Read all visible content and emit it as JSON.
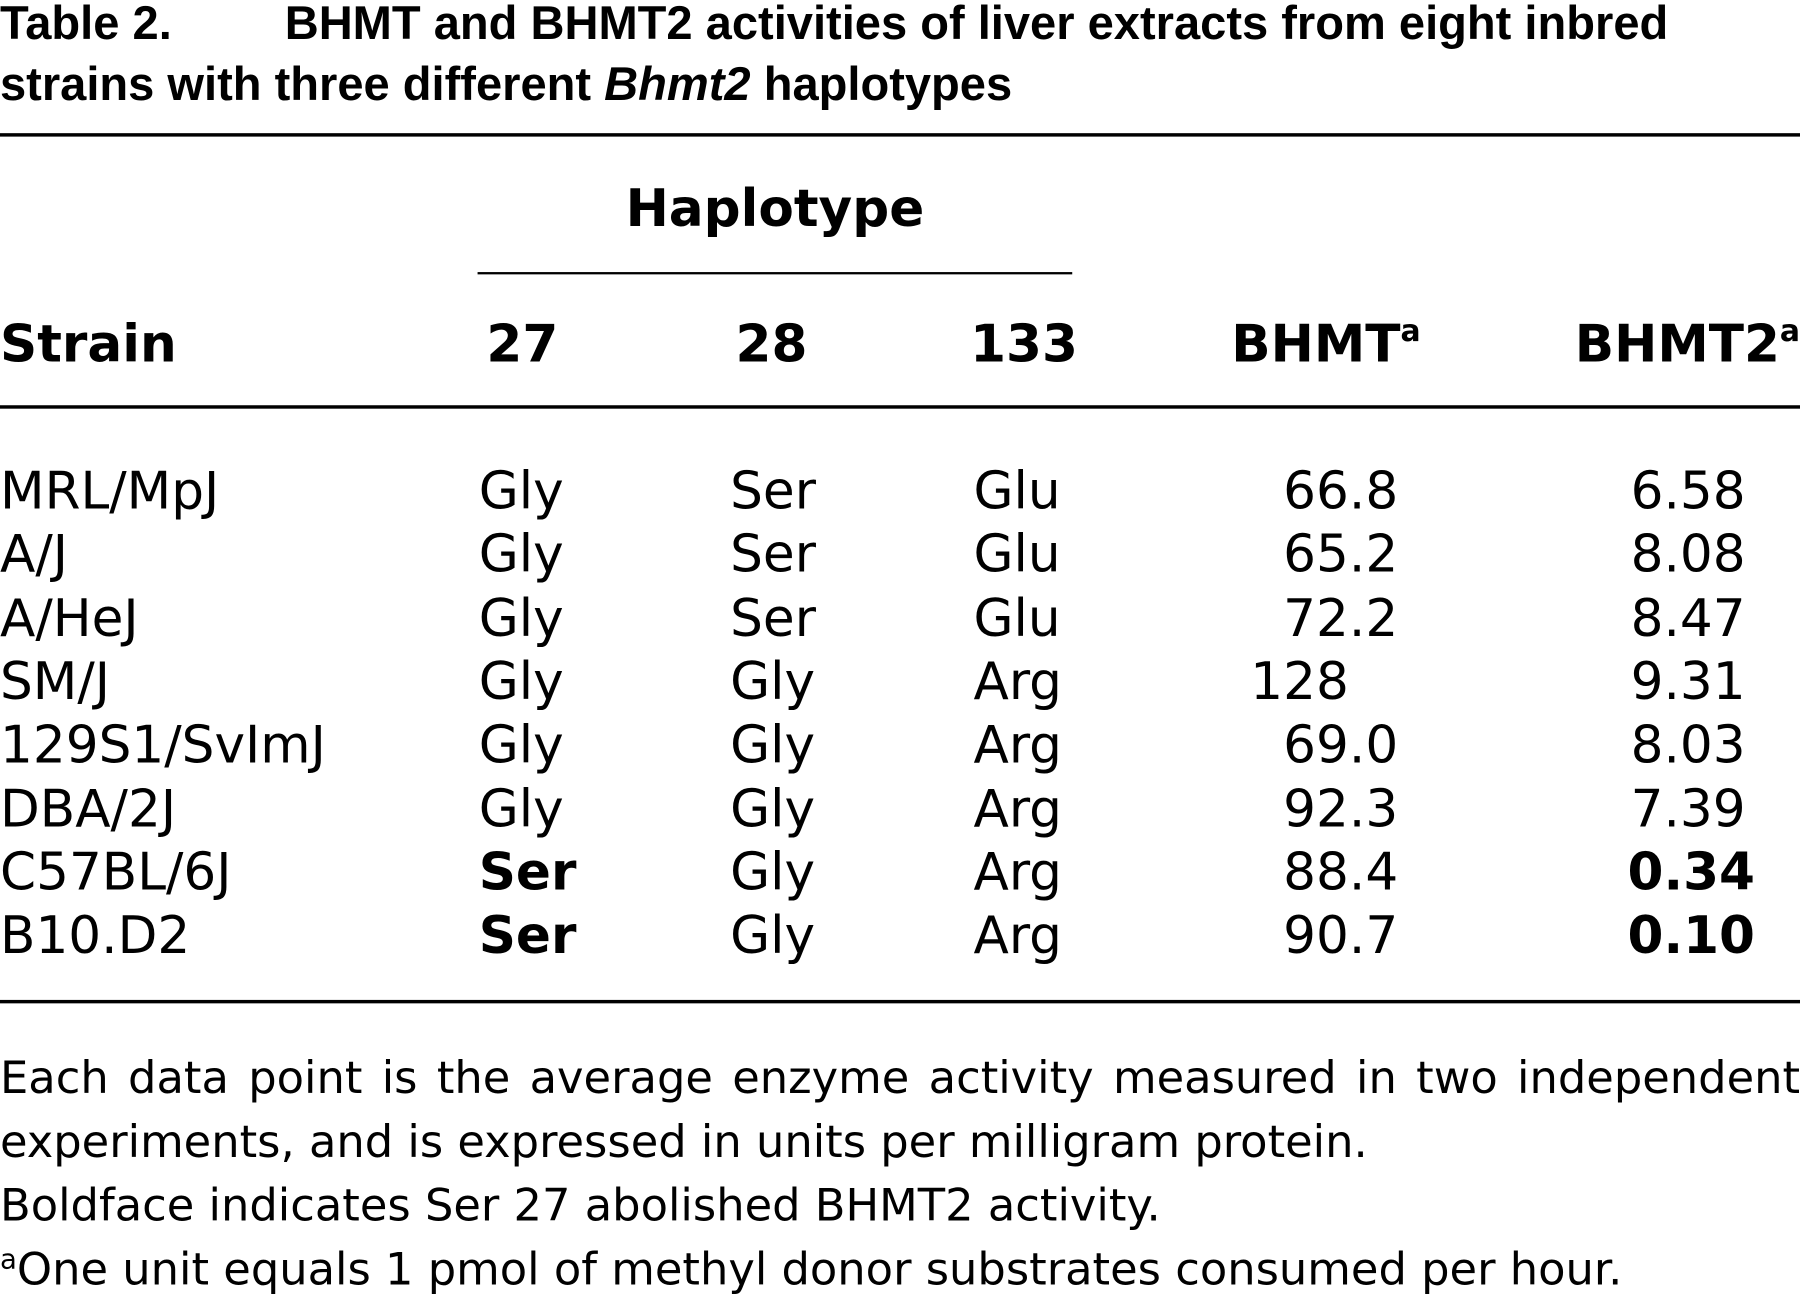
{
  "caption": {
    "label": "Table 2.",
    "title": "BHMT and BHMT2 activities of liver extracts from eight inbred strains with three different ",
    "title_italic": "Bhmt2",
    "title_end": " haplotypes"
  },
  "table": {
    "group_header": "Haplotype",
    "columns": [
      {
        "label": "Strain"
      },
      {
        "label": "27"
      },
      {
        "label": "28"
      },
      {
        "label": "133"
      },
      {
        "label": "BHMT",
        "note": "a"
      },
      {
        "label": "BHMT2",
        "note": "a"
      }
    ],
    "rows": [
      {
        "cells": [
          "MRL/MpJ",
          "Gly",
          "Ser",
          "Glu",
          "66.8",
          "6.58"
        ]
      },
      {
        "cells": [
          "A/J",
          "Gly",
          "Ser",
          "Glu",
          "65.2",
          "8.08"
        ]
      },
      {
        "cells": [
          "A/HeJ",
          "Gly",
          "Ser",
          "Glu",
          "72.2",
          "8.47"
        ]
      },
      {
        "cells": [
          "SM/J",
          "Gly",
          "Gly",
          "Arg",
          "128",
          "9.31"
        ]
      },
      {
        "cells": [
          "129S1/SvImJ",
          "Gly",
          "Gly",
          "Arg",
          "69.0",
          "8.03"
        ]
      },
      {
        "cells": [
          "DBA/2J",
          "Gly",
          "Gly",
          "Arg",
          "92.3",
          "7.39"
        ]
      },
      {
        "cells": [
          "C57BL/6J",
          "Ser",
          "Gly",
          "Arg",
          "88.4",
          "0.34"
        ],
        "bold": [
          1,
          5
        ]
      },
      {
        "cells": [
          "B10.D2",
          "Ser",
          "Gly",
          "Arg",
          "90.7",
          "0.10"
        ],
        "bold": [
          1,
          5
        ]
      }
    ]
  },
  "notes": [
    "Each data point is the average enzyme activity measured in two in­dependent experiments, and is expressed in units per milligram protein.",
    "Boldface indicates Ser 27 abolished BHMT2 activity."
  ],
  "footnote": {
    "mark": "a",
    "text": "One unit equals 1 pmol of methyl donor substrates consumed per hour."
  }
}
